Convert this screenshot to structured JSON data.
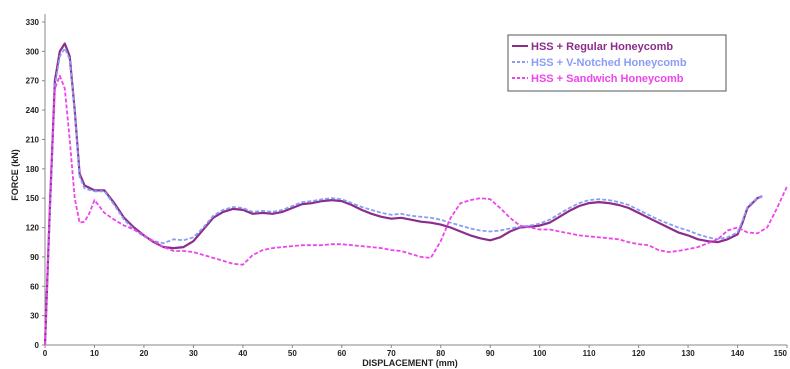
{
  "chart_data": {
    "type": "line",
    "title": "",
    "xlabel": "DISPLACEMENT (mm)",
    "ylabel": "FORCE (kN)",
    "xlim": [
      0,
      150
    ],
    "ylim": [
      0,
      330
    ],
    "x_ticks": [
      "0",
      "10",
      "20",
      "30",
      "40",
      "50",
      "60",
      "70",
      "80",
      "90",
      "100",
      "110",
      "120",
      "130",
      "140",
      "150"
    ],
    "y_ticks": [
      "0",
      "30",
      "60",
      "90",
      "120",
      "150",
      "180",
      "210",
      "240",
      "270",
      "300",
      "330"
    ],
    "grid": false,
    "legend_position": "top-right",
    "series": [
      {
        "name": "HSS + Regular Honeycomb",
        "color": "#8b2d8b",
        "dash": "solid",
        "points": [
          [
            0,
            0
          ],
          [
            1,
            140
          ],
          [
            2,
            270
          ],
          [
            3,
            300
          ],
          [
            4,
            308
          ],
          [
            5,
            295
          ],
          [
            6,
            240
          ],
          [
            7,
            175
          ],
          [
            8,
            163
          ],
          [
            10,
            158
          ],
          [
            12,
            158
          ],
          [
            14,
            145
          ],
          [
            16,
            130
          ],
          [
            18,
            120
          ],
          [
            20,
            112
          ],
          [
            22,
            105
          ],
          [
            24,
            100
          ],
          [
            26,
            99
          ],
          [
            28,
            100
          ],
          [
            30,
            106
          ],
          [
            32,
            118
          ],
          [
            34,
            130
          ],
          [
            36,
            136
          ],
          [
            38,
            139
          ],
          [
            40,
            138
          ],
          [
            42,
            134
          ],
          [
            44,
            135
          ],
          [
            46,
            134
          ],
          [
            48,
            136
          ],
          [
            50,
            140
          ],
          [
            52,
            144
          ],
          [
            54,
            145
          ],
          [
            56,
            147
          ],
          [
            58,
            148
          ],
          [
            60,
            147
          ],
          [
            62,
            143
          ],
          [
            64,
            138
          ],
          [
            66,
            134
          ],
          [
            68,
            131
          ],
          [
            70,
            129
          ],
          [
            72,
            130
          ],
          [
            74,
            128
          ],
          [
            76,
            126
          ],
          [
            78,
            125
          ],
          [
            80,
            123
          ],
          [
            82,
            120
          ],
          [
            84,
            116
          ],
          [
            86,
            112
          ],
          [
            88,
            109
          ],
          [
            90,
            107
          ],
          [
            92,
            110
          ],
          [
            94,
            116
          ],
          [
            96,
            120
          ],
          [
            98,
            121
          ],
          [
            100,
            122
          ],
          [
            102,
            125
          ],
          [
            104,
            131
          ],
          [
            106,
            137
          ],
          [
            108,
            142
          ],
          [
            110,
            145
          ],
          [
            112,
            146
          ],
          [
            114,
            145
          ],
          [
            116,
            143
          ],
          [
            118,
            140
          ],
          [
            120,
            135
          ],
          [
            122,
            130
          ],
          [
            124,
            125
          ],
          [
            126,
            120
          ],
          [
            128,
            115
          ],
          [
            130,
            112
          ],
          [
            132,
            108
          ],
          [
            134,
            106
          ],
          [
            136,
            105
          ],
          [
            138,
            108
          ],
          [
            140,
            113
          ],
          [
            141,
            125
          ],
          [
            142,
            140
          ],
          [
            143,
            145
          ],
          [
            144,
            150
          ],
          [
            145,
            152
          ]
        ]
      },
      {
        "name": "HSS + V-Notched Honeycomb",
        "color": "#8a9df5",
        "dash": "dashed",
        "points": [
          [
            0,
            0
          ],
          [
            1,
            135
          ],
          [
            2,
            265
          ],
          [
            3,
            295
          ],
          [
            4,
            303
          ],
          [
            5,
            292
          ],
          [
            6,
            238
          ],
          [
            7,
            172
          ],
          [
            8,
            160
          ],
          [
            10,
            157
          ],
          [
            12,
            157
          ],
          [
            14,
            143
          ],
          [
            16,
            128
          ],
          [
            18,
            118
          ],
          [
            20,
            111
          ],
          [
            22,
            106
          ],
          [
            24,
            104
          ],
          [
            26,
            108
          ],
          [
            28,
            107
          ],
          [
            30,
            110
          ],
          [
            32,
            120
          ],
          [
            34,
            132
          ],
          [
            36,
            138
          ],
          [
            38,
            141
          ],
          [
            40,
            140
          ],
          [
            42,
            136
          ],
          [
            44,
            137
          ],
          [
            46,
            136
          ],
          [
            48,
            138
          ],
          [
            50,
            142
          ],
          [
            52,
            146
          ],
          [
            54,
            147
          ],
          [
            56,
            149
          ],
          [
            58,
            150
          ],
          [
            60,
            149
          ],
          [
            62,
            145
          ],
          [
            64,
            141
          ],
          [
            66,
            138
          ],
          [
            68,
            135
          ],
          [
            70,
            133
          ],
          [
            72,
            134
          ],
          [
            74,
            132
          ],
          [
            76,
            131
          ],
          [
            78,
            130
          ],
          [
            80,
            128
          ],
          [
            82,
            125
          ],
          [
            84,
            122
          ],
          [
            86,
            119
          ],
          [
            88,
            117
          ],
          [
            90,
            116
          ],
          [
            92,
            117
          ],
          [
            94,
            119
          ],
          [
            96,
            121
          ],
          [
            98,
            122
          ],
          [
            100,
            124
          ],
          [
            102,
            128
          ],
          [
            104,
            134
          ],
          [
            106,
            140
          ],
          [
            108,
            145
          ],
          [
            110,
            148
          ],
          [
            112,
            149
          ],
          [
            114,
            148
          ],
          [
            116,
            146
          ],
          [
            118,
            143
          ],
          [
            120,
            138
          ],
          [
            122,
            133
          ],
          [
            124,
            128
          ],
          [
            126,
            124
          ],
          [
            128,
            120
          ],
          [
            130,
            117
          ],
          [
            132,
            113
          ],
          [
            134,
            110
          ],
          [
            136,
            108
          ],
          [
            138,
            110
          ],
          [
            140,
            115
          ],
          [
            141,
            127
          ],
          [
            142,
            141
          ],
          [
            143,
            146
          ],
          [
            144,
            150
          ],
          [
            145,
            152
          ]
        ]
      },
      {
        "name": "HSS + Sandwich Honeycomb",
        "color": "#ee44ee",
        "dash": "dashed",
        "points": [
          [
            0,
            0
          ],
          [
            1,
            150
          ],
          [
            2,
            262
          ],
          [
            3,
            275
          ],
          [
            4,
            262
          ],
          [
            5,
            210
          ],
          [
            6,
            150
          ],
          [
            7,
            125
          ],
          [
            8,
            126
          ],
          [
            9,
            135
          ],
          [
            10,
            148
          ],
          [
            12,
            135
          ],
          [
            14,
            128
          ],
          [
            16,
            122
          ],
          [
            18,
            118
          ],
          [
            20,
            112
          ],
          [
            22,
            106
          ],
          [
            24,
            100
          ],
          [
            26,
            96
          ],
          [
            28,
            96
          ],
          [
            30,
            95
          ],
          [
            32,
            92
          ],
          [
            34,
            89
          ],
          [
            36,
            86
          ],
          [
            38,
            83
          ],
          [
            40,
            82
          ],
          [
            42,
            92
          ],
          [
            44,
            97
          ],
          [
            46,
            99
          ],
          [
            48,
            100
          ],
          [
            50,
            101
          ],
          [
            52,
            102
          ],
          [
            54,
            102
          ],
          [
            56,
            102
          ],
          [
            58,
            103
          ],
          [
            60,
            103
          ],
          [
            62,
            102
          ],
          [
            64,
            101
          ],
          [
            66,
            100
          ],
          [
            68,
            99
          ],
          [
            70,
            97
          ],
          [
            72,
            96
          ],
          [
            74,
            93
          ],
          [
            76,
            90
          ],
          [
            78,
            89
          ],
          [
            80,
            106
          ],
          [
            82,
            130
          ],
          [
            84,
            145
          ],
          [
            86,
            148
          ],
          [
            88,
            150
          ],
          [
            90,
            149
          ],
          [
            92,
            140
          ],
          [
            94,
            130
          ],
          [
            96,
            122
          ],
          [
            98,
            120
          ],
          [
            100,
            118
          ],
          [
            102,
            118
          ],
          [
            104,
            116
          ],
          [
            106,
            114
          ],
          [
            108,
            112
          ],
          [
            110,
            111
          ],
          [
            112,
            110
          ],
          [
            114,
            109
          ],
          [
            116,
            108
          ],
          [
            118,
            105
          ],
          [
            120,
            103
          ],
          [
            122,
            102
          ],
          [
            124,
            97
          ],
          [
            126,
            95
          ],
          [
            128,
            96
          ],
          [
            130,
            98
          ],
          [
            132,
            100
          ],
          [
            134,
            104
          ],
          [
            136,
            108
          ],
          [
            138,
            117
          ],
          [
            140,
            120
          ],
          [
            142,
            115
          ],
          [
            144,
            114
          ],
          [
            146,
            120
          ],
          [
            148,
            140
          ],
          [
            150,
            162
          ]
        ]
      }
    ]
  }
}
